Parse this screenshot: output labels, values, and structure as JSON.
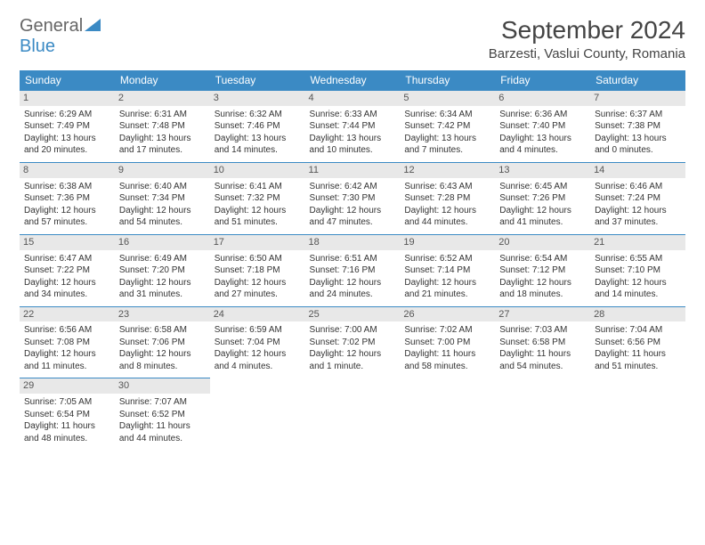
{
  "logo": {
    "part1": "General",
    "part2": "Blue"
  },
  "title": "September 2024",
  "location": "Barzesti, Vaslui County, Romania",
  "colors": {
    "accent": "#3b8ac4",
    "header_text": "#ffffff",
    "daynum_bg": "#e8e8e8",
    "text": "#333333",
    "logo_gray": "#666666"
  },
  "days_of_week": [
    "Sunday",
    "Monday",
    "Tuesday",
    "Wednesday",
    "Thursday",
    "Friday",
    "Saturday"
  ],
  "weeks": [
    [
      {
        "n": "1",
        "sr": "6:29 AM",
        "ss": "7:49 PM",
        "dl": "13 hours and 20 minutes."
      },
      {
        "n": "2",
        "sr": "6:31 AM",
        "ss": "7:48 PM",
        "dl": "13 hours and 17 minutes."
      },
      {
        "n": "3",
        "sr": "6:32 AM",
        "ss": "7:46 PM",
        "dl": "13 hours and 14 minutes."
      },
      {
        "n": "4",
        "sr": "6:33 AM",
        "ss": "7:44 PM",
        "dl": "13 hours and 10 minutes."
      },
      {
        "n": "5",
        "sr": "6:34 AM",
        "ss": "7:42 PM",
        "dl": "13 hours and 7 minutes."
      },
      {
        "n": "6",
        "sr": "6:36 AM",
        "ss": "7:40 PM",
        "dl": "13 hours and 4 minutes."
      },
      {
        "n": "7",
        "sr": "6:37 AM",
        "ss": "7:38 PM",
        "dl": "13 hours and 0 minutes."
      }
    ],
    [
      {
        "n": "8",
        "sr": "6:38 AM",
        "ss": "7:36 PM",
        "dl": "12 hours and 57 minutes."
      },
      {
        "n": "9",
        "sr": "6:40 AM",
        "ss": "7:34 PM",
        "dl": "12 hours and 54 minutes."
      },
      {
        "n": "10",
        "sr": "6:41 AM",
        "ss": "7:32 PM",
        "dl": "12 hours and 51 minutes."
      },
      {
        "n": "11",
        "sr": "6:42 AM",
        "ss": "7:30 PM",
        "dl": "12 hours and 47 minutes."
      },
      {
        "n": "12",
        "sr": "6:43 AM",
        "ss": "7:28 PM",
        "dl": "12 hours and 44 minutes."
      },
      {
        "n": "13",
        "sr": "6:45 AM",
        "ss": "7:26 PM",
        "dl": "12 hours and 41 minutes."
      },
      {
        "n": "14",
        "sr": "6:46 AM",
        "ss": "7:24 PM",
        "dl": "12 hours and 37 minutes."
      }
    ],
    [
      {
        "n": "15",
        "sr": "6:47 AM",
        "ss": "7:22 PM",
        "dl": "12 hours and 34 minutes."
      },
      {
        "n": "16",
        "sr": "6:49 AM",
        "ss": "7:20 PM",
        "dl": "12 hours and 31 minutes."
      },
      {
        "n": "17",
        "sr": "6:50 AM",
        "ss": "7:18 PM",
        "dl": "12 hours and 27 minutes."
      },
      {
        "n": "18",
        "sr": "6:51 AM",
        "ss": "7:16 PM",
        "dl": "12 hours and 24 minutes."
      },
      {
        "n": "19",
        "sr": "6:52 AM",
        "ss": "7:14 PM",
        "dl": "12 hours and 21 minutes."
      },
      {
        "n": "20",
        "sr": "6:54 AM",
        "ss": "7:12 PM",
        "dl": "12 hours and 18 minutes."
      },
      {
        "n": "21",
        "sr": "6:55 AM",
        "ss": "7:10 PM",
        "dl": "12 hours and 14 minutes."
      }
    ],
    [
      {
        "n": "22",
        "sr": "6:56 AM",
        "ss": "7:08 PM",
        "dl": "12 hours and 11 minutes."
      },
      {
        "n": "23",
        "sr": "6:58 AM",
        "ss": "7:06 PM",
        "dl": "12 hours and 8 minutes."
      },
      {
        "n": "24",
        "sr": "6:59 AM",
        "ss": "7:04 PM",
        "dl": "12 hours and 4 minutes."
      },
      {
        "n": "25",
        "sr": "7:00 AM",
        "ss": "7:02 PM",
        "dl": "12 hours and 1 minute."
      },
      {
        "n": "26",
        "sr": "7:02 AM",
        "ss": "7:00 PM",
        "dl": "11 hours and 58 minutes."
      },
      {
        "n": "27",
        "sr": "7:03 AM",
        "ss": "6:58 PM",
        "dl": "11 hours and 54 minutes."
      },
      {
        "n": "28",
        "sr": "7:04 AM",
        "ss": "6:56 PM",
        "dl": "11 hours and 51 minutes."
      }
    ],
    [
      {
        "n": "29",
        "sr": "7:05 AM",
        "ss": "6:54 PM",
        "dl": "11 hours and 48 minutes."
      },
      {
        "n": "30",
        "sr": "7:07 AM",
        "ss": "6:52 PM",
        "dl": "11 hours and 44 minutes."
      },
      null,
      null,
      null,
      null,
      null
    ]
  ],
  "labels": {
    "sunrise": "Sunrise:",
    "sunset": "Sunset:",
    "daylight": "Daylight:"
  }
}
